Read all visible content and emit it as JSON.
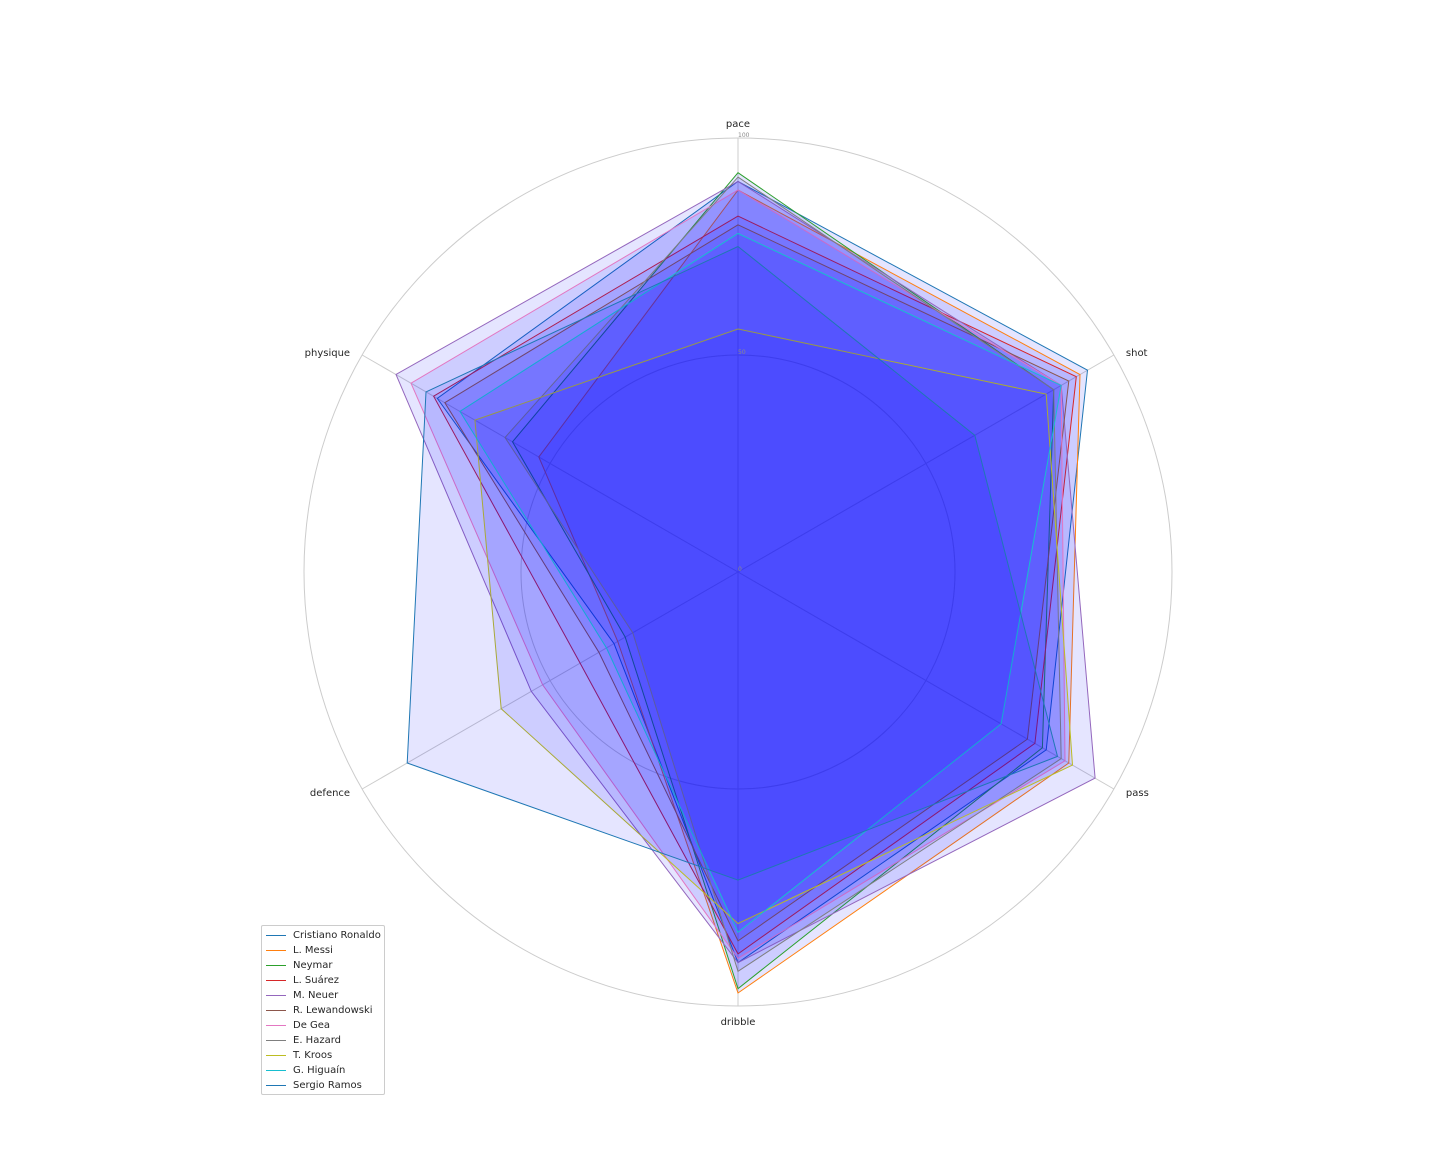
{
  "chart_data": {
    "type": "radar",
    "axes": [
      "pace",
      "shot",
      "pass",
      "dribble",
      "defence",
      "physique"
    ],
    "radial_ticks": [
      "0",
      "50",
      "100"
    ],
    "rlim": [
      0,
      100
    ],
    "grid": true,
    "legend_position": "lower-left",
    "fill_color": "#0000ff",
    "series": [
      {
        "name": "Cristiano Ronaldo",
        "color": "#1f77b4",
        "values": [
          90,
          93,
          82,
          90,
          33,
          80
        ]
      },
      {
        "name": "L. Messi",
        "color": "#ff7f0e",
        "values": [
          88,
          91,
          88,
          97,
          32,
          53
        ]
      },
      {
        "name": "Neymar",
        "color": "#2ca02c",
        "values": [
          92,
          84,
          81,
          96,
          30,
          60
        ]
      },
      {
        "name": "L. Suárez",
        "color": "#d62728",
        "values": [
          82,
          90,
          79,
          88,
          42,
          81
        ]
      },
      {
        "name": "M. Neuer",
        "color": "#9467bd",
        "values": [
          90,
          86,
          95,
          90,
          55,
          91
        ]
      },
      {
        "name": "R. Lewandowski",
        "color": "#8c564b",
        "values": [
          80,
          88,
          77,
          85,
          37,
          78
        ]
      },
      {
        "name": "De Gea",
        "color": "#e377c2",
        "values": [
          88,
          86,
          87,
          89,
          52,
          87
        ]
      },
      {
        "name": "E. Hazard",
        "color": "#7f7f7f",
        "values": [
          91,
          84,
          86,
          92,
          28,
          62
        ]
      },
      {
        "name": "T. Kroos",
        "color": "#bcbd22",
        "values": [
          56,
          82,
          89,
          81,
          63,
          70
        ]
      },
      {
        "name": "G. Higuaín",
        "color": "#17becf",
        "values": [
          78,
          86,
          70,
          83,
          35,
          74
        ]
      },
      {
        "name": "Sergio Ramos",
        "color": "#1f77b4",
        "values": [
          75,
          63,
          85,
          71,
          88,
          83
        ]
      }
    ]
  }
}
